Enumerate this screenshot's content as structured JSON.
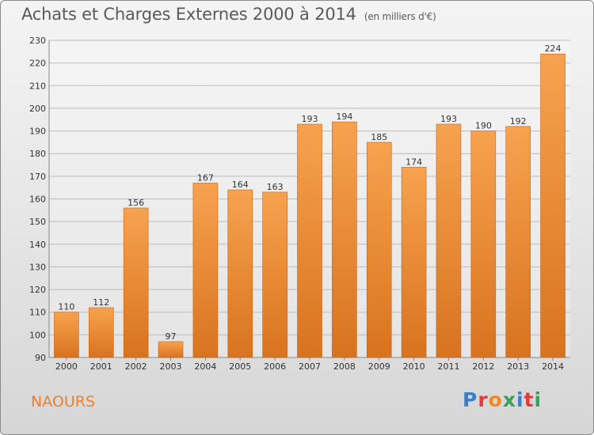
{
  "title": "Achats et Charges Externes 2000 à 2014",
  "unit_note": "(en milliers d'€)",
  "commune": "NAOURS",
  "logo": {
    "text": "Proxiti",
    "letter_colors": [
      "#3a7fc8",
      "#e23b3b",
      "#f08a1e",
      "#3aa05a",
      "#3a7fc8",
      "#e23b3b",
      "#3aa05a"
    ]
  },
  "colors": {
    "bar_top": "#f7a24f",
    "bar_bottom": "#d8731f",
    "bar_edge": "#c96416",
    "grid": "#bbbbbb",
    "axis_text": "#333333",
    "commune_text": "#f07f2a"
  },
  "chart_data": {
    "type": "bar",
    "categories": [
      "2000",
      "2001",
      "2002",
      "2003",
      "2004",
      "2005",
      "2006",
      "2007",
      "2008",
      "2009",
      "2010",
      "2011",
      "2012",
      "2013",
      "2014"
    ],
    "values": [
      110,
      112,
      156,
      97,
      167,
      164,
      163,
      193,
      194,
      185,
      174,
      193,
      190,
      192,
      224
    ],
    "ylim": [
      90,
      230
    ],
    "yticks": [
      90,
      100,
      110,
      120,
      130,
      140,
      150,
      160,
      170,
      180,
      190,
      200,
      210,
      220,
      230
    ],
    "grid": true,
    "xlabel": "",
    "ylabel": ""
  }
}
